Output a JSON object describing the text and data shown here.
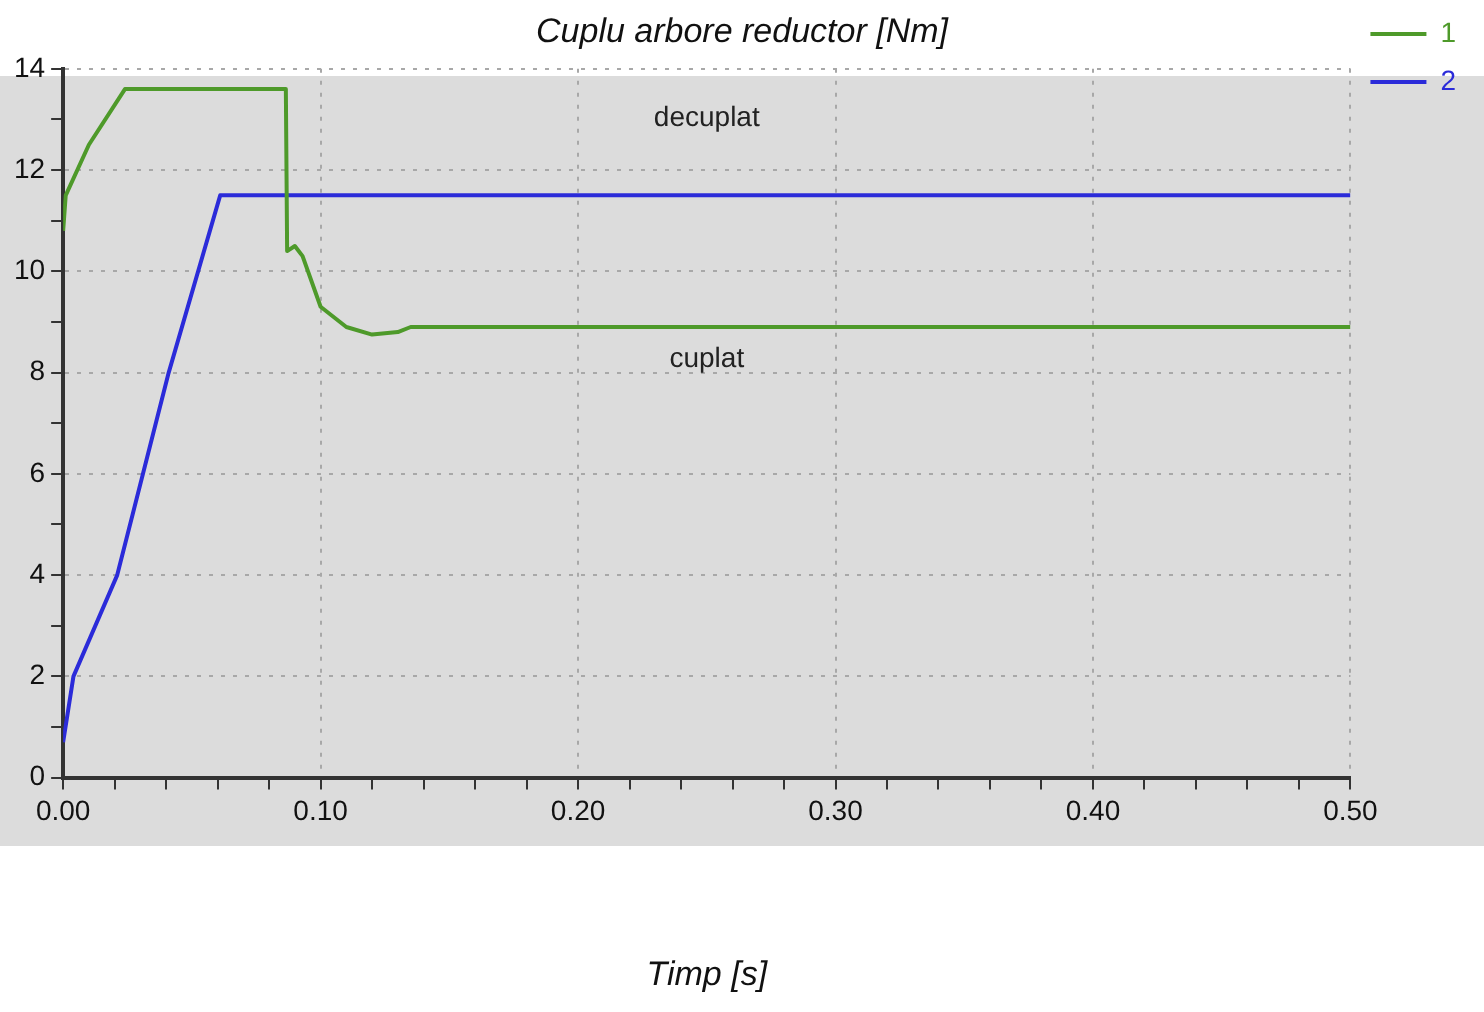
{
  "chart_data": {
    "type": "line",
    "title": "Cuplu arbore reductor [Nm]",
    "xlabel": "Timp [s]",
    "series": [
      {
        "name": "1",
        "color": "#4e9a2a",
        "x": [
          0,
          0.001,
          0.01,
          0.024,
          0.0865,
          0.087,
          0.09,
          0.093,
          0.1,
          0.11,
          0.12,
          0.13,
          0.135,
          0.5
        ],
        "values": [
          10.8,
          11.5,
          12.5,
          13.6,
          13.6,
          10.4,
          10.5,
          10.3,
          9.3,
          8.9,
          8.75,
          8.8,
          8.9,
          8.9
        ]
      },
      {
        "name": "2",
        "color": "#2b2bd9",
        "x": [
          0,
          0.004,
          0.021,
          0.041,
          0.061,
          0.5
        ],
        "values": [
          0.7,
          2,
          4,
          8,
          11.5,
          11.5
        ]
      }
    ],
    "annotations": [
      "decuplat",
      "cuplat"
    ],
    "xlim": [
      0,
      0.5
    ],
    "ylim": [
      0,
      14
    ],
    "xticks": [
      {
        "value": 0,
        "label": "0.00"
      },
      {
        "value": 0.02,
        "label": null
      },
      {
        "value": 0.04,
        "label": null
      },
      {
        "value": 0.06,
        "label": null
      },
      {
        "value": 0.08,
        "label": null
      },
      {
        "value": 0.1,
        "label": "0.10"
      },
      {
        "value": 0.12,
        "label": null
      },
      {
        "value": 0.14,
        "label": null
      },
      {
        "value": 0.16,
        "label": null
      },
      {
        "value": 0.18,
        "label": null
      },
      {
        "value": 0.2,
        "label": "0.20"
      },
      {
        "value": 0.22,
        "label": null
      },
      {
        "value": 0.24,
        "label": null
      },
      {
        "value": 0.26,
        "label": null
      },
      {
        "value": 0.28,
        "label": null
      },
      {
        "value": 0.3,
        "label": "0.30"
      },
      {
        "value": 0.32,
        "label": null
      },
      {
        "value": 0.34,
        "label": null
      },
      {
        "value": 0.36,
        "label": null
      },
      {
        "value": 0.38,
        "label": null
      },
      {
        "value": 0.4,
        "label": "0.40"
      },
      {
        "value": 0.42,
        "label": null
      },
      {
        "value": 0.44,
        "label": null
      },
      {
        "value": 0.46,
        "label": null
      },
      {
        "value": 0.48,
        "label": null
      },
      {
        "value": 0.5,
        "label": "0.50"
      }
    ],
    "yticks": [
      0,
      {
        "value": 1,
        "label": null
      },
      2,
      {
        "value": 3,
        "label": null
      },
      4,
      {
        "value": 5,
        "label": null
      },
      6,
      {
        "value": 7,
        "label": null
      },
      8,
      {
        "value": 9,
        "label": null
      },
      10,
      {
        "value": 11,
        "label": null
      },
      12,
      {
        "value": 13,
        "label": null
      },
      14
    ],
    "grid": true,
    "legend": "top right",
    "marker": "none",
    "line_style": "solid"
  }
}
